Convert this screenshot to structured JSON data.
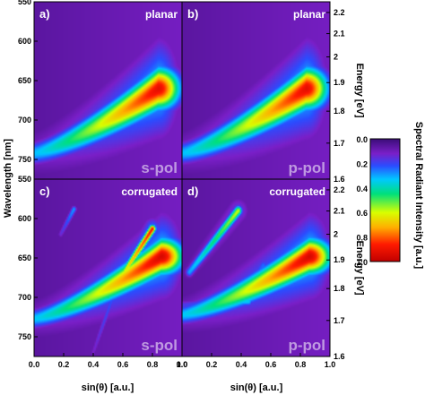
{
  "chart_data": {
    "type": "heatmap",
    "panels": [
      {
        "letter": "a)",
        "title": "planar",
        "polarization": "s-pol",
        "features": [
          {
            "kind": "band",
            "start": [
              0.0,
              742
            ],
            "end": [
              0.84,
              660
            ],
            "width": 14,
            "peak": 0.92
          }
        ]
      },
      {
        "letter": "b)",
        "title": "planar",
        "polarization": "p-pol",
        "features": [
          {
            "kind": "band",
            "start": [
              0.0,
              742
            ],
            "end": [
              0.84,
              660
            ],
            "width": 14,
            "peak": 0.92
          }
        ]
      },
      {
        "letter": "c)",
        "title": "corrugated",
        "polarization": "s-pol",
        "features": [
          {
            "kind": "band",
            "start": [
              0.0,
              727
            ],
            "end": [
              0.86,
              648
            ],
            "width": 12,
            "peak": 0.95
          },
          {
            "kind": "line",
            "start": [
              0.5,
              700
            ],
            "end": [
              0.8,
              613
            ],
            "width": 5,
            "peak": 0.9
          },
          {
            "kind": "line",
            "start": [
              0.18,
              620
            ],
            "end": [
              0.27,
              588
            ],
            "width": 4,
            "peak": 0.3
          },
          {
            "kind": "line",
            "start": [
              0.4,
              770
            ],
            "end": [
              0.55,
              690
            ],
            "width": 4,
            "peak": 0.25
          }
        ]
      },
      {
        "letter": "d)",
        "title": "corrugated",
        "polarization": "p-pol",
        "features": [
          {
            "kind": "band",
            "start": [
              0.0,
              722
            ],
            "end": [
              0.86,
              648
            ],
            "width": 12,
            "peak": 0.95
          },
          {
            "kind": "line",
            "start": [
              0.05,
              668
            ],
            "end": [
              0.38,
              590
            ],
            "width": 6,
            "peak": 0.6
          },
          {
            "kind": "line",
            "start": [
              0.38,
              700
            ],
            "end": [
              0.55,
              660
            ],
            "width": 8,
            "peak": 0.25
          },
          {
            "kind": "line",
            "start": [
              0.0,
              710
            ],
            "end": [
              0.45,
              705
            ],
            "width": 6,
            "peak": 0.35
          }
        ]
      }
    ],
    "x": {
      "label": "sin(θ) [a.u.]",
      "range": [
        0.0,
        1.0
      ],
      "ticks": [
        "0.0",
        "0.2",
        "0.4",
        "0.6",
        "0.8",
        "1.0"
      ]
    },
    "y_left": {
      "label": "Wavelength [nm]",
      "range": [
        550,
        775
      ],
      "ticks": [
        550,
        600,
        650,
        700,
        750
      ],
      "reversed": true
    },
    "y_right": {
      "label": "Energy [eV]",
      "ticks": [
        "2.2",
        "2.1",
        "2",
        "1.9",
        "1.8",
        "1.7",
        "1.6"
      ]
    },
    "colorbar": {
      "label": "Spectral Radiant Intensity [a.u.]",
      "range": [
        0.0,
        1.0
      ],
      "ticks": [
        "0.0",
        "0.2",
        "0.4",
        "0.6",
        "0.8",
        "1.0"
      ]
    },
    "colormap": [
      "#3b0d78",
      "#7a1fc8",
      "#2b4cff",
      "#00c8ff",
      "#00e07a",
      "#d8ff00",
      "#ffb000",
      "#ff1a00",
      "#c00000"
    ]
  }
}
